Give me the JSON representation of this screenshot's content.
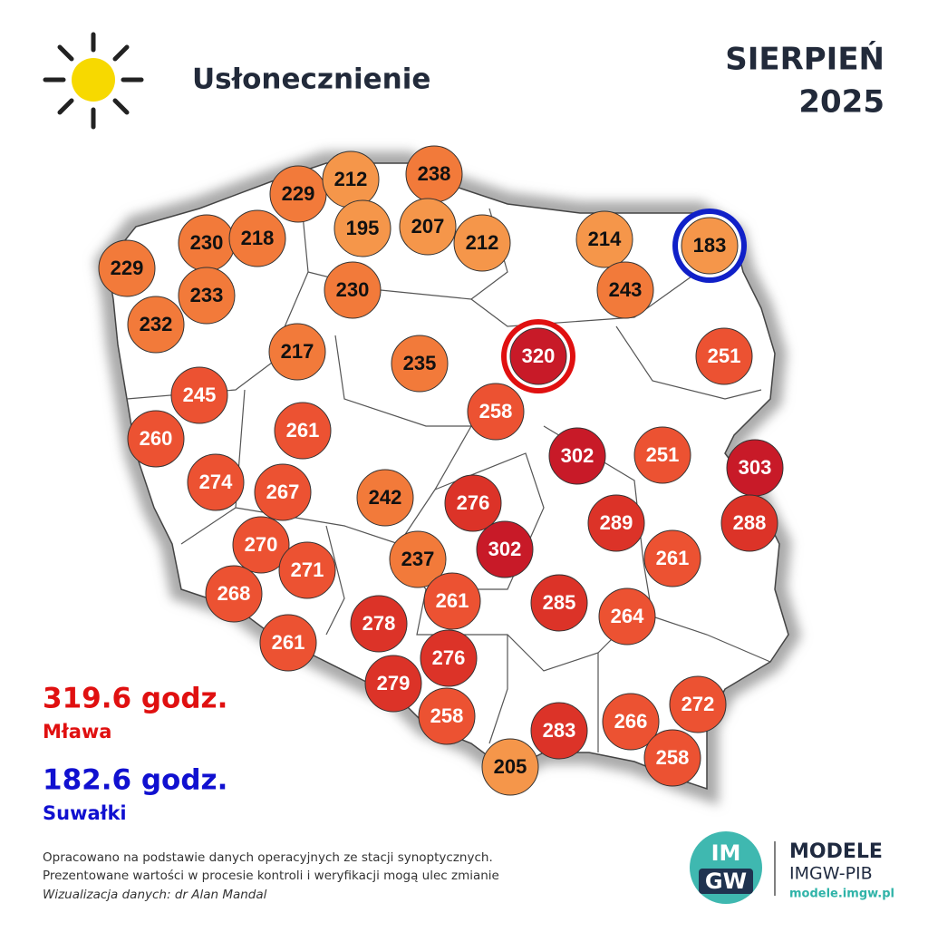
{
  "header": {
    "title": "Usłonecznienie",
    "month": "SIERPIEŃ",
    "year": "2025"
  },
  "stations": [
    229,
    230,
    218,
    229,
    212,
    238,
    195,
    207,
    212,
    214,
    183,
    233,
    232,
    230,
    243,
    217,
    235,
    320,
    251,
    245,
    258,
    260,
    261,
    302,
    251,
    303,
    274,
    267,
    242,
    276,
    289,
    288,
    270,
    271,
    237,
    302,
    261,
    268,
    261,
    285,
    264,
    278,
    261,
    276,
    279,
    258,
    283,
    266,
    272,
    258,
    205
  ],
  "max": {
    "value": "319.6 godz.",
    "station": "Mława"
  },
  "min": {
    "value": "182.6 godz.",
    "station": "Suwałki"
  },
  "footer": {
    "line1": "Opracowano na podstawie danych operacyjnych ze stacji synoptycznych.",
    "line2": "Prezentowane wartości w procesie kontroli i weryfikacji mogą ulec zmianie",
    "credit": "Wizualizacja danych: dr Alan Mandal"
  },
  "logo": {
    "top": "IM",
    "bottom": "GW",
    "name": "MODELE",
    "org": "IMGW-PIB",
    "url": "modele.imgw.pl"
  }
}
